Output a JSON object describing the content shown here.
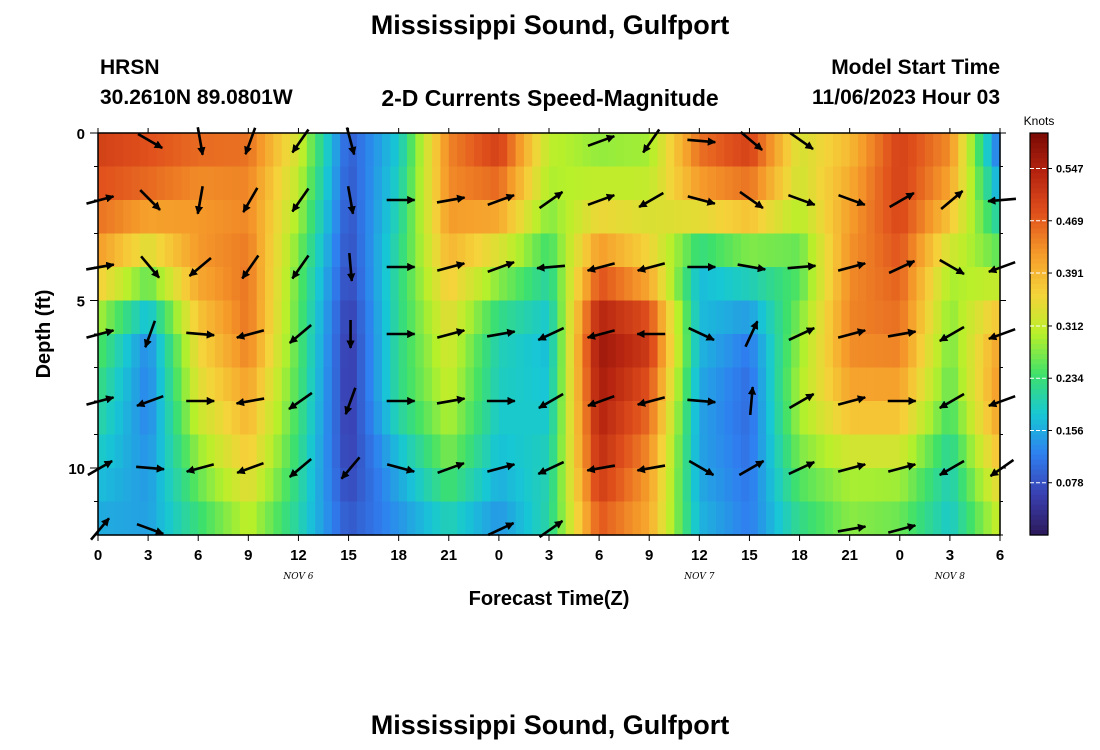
{
  "header": {
    "title": "Mississippi Sound, Gulfport",
    "station": "HRSN",
    "coords": "30.2610N  89.0801W",
    "subtitle": "2-D Currents Speed-Magnitude",
    "model_label": "Model Start Time",
    "model_time": "11/06/2023 Hour 03"
  },
  "footer": {
    "title": "Mississippi Sound, Gulfport"
  },
  "chart_data": {
    "type": "heatmap",
    "title": "2-D Currents Speed-Magnitude",
    "xlabel": "Forecast Time(Z)",
    "ylabel": "Depth (ft)",
    "colorbar_label": "Knots",
    "x_tick_labels": [
      "0",
      "3",
      "6",
      "9",
      "12",
      "15",
      "18",
      "21",
      "0",
      "3",
      "6",
      "9",
      "12",
      "15",
      "18",
      "21",
      "0",
      "3",
      "6"
    ],
    "y_tick_labels": [
      "0",
      "5",
      "10"
    ],
    "ylim": [
      0,
      12
    ],
    "y_inverted": true,
    "date_labels": [
      {
        "text": "NOV 6",
        "at_hour": 12
      },
      {
        "text": "NOV 7",
        "at_hour": 36
      },
      {
        "text": "NOV 8",
        "at_hour": 51
      }
    ],
    "colorbar_ticks": [
      "0.078",
      "0.156",
      "0.234",
      "0.312",
      "0.391",
      "0.469",
      "0.547"
    ],
    "colorbar_range": [
      0.0,
      0.6
    ],
    "colors": [
      "#2b1a5a",
      "#3a3fb0",
      "#2f7ff0",
      "#17c7d4",
      "#3fe16a",
      "#b8f02a",
      "#f5d33a",
      "#f59a2a",
      "#e0501c",
      "#b62410",
      "#7a0a04"
    ],
    "depths_ft": [
      0,
      2,
      4,
      6,
      8,
      10,
      12
    ],
    "hours": [
      0,
      3,
      6,
      9,
      12,
      15,
      18,
      21,
      24,
      27,
      30,
      33,
      36,
      39,
      42,
      45,
      48,
      51,
      54
    ],
    "speed_knots": [
      [
        0.51,
        0.49,
        0.47,
        0.46,
        0.33,
        0.09,
        0.18,
        0.44,
        0.52,
        0.31,
        0.27,
        0.28,
        0.47,
        0.52,
        0.33,
        0.38,
        0.5,
        0.44,
        0.08
      ],
      [
        0.47,
        0.45,
        0.42,
        0.43,
        0.3,
        0.08,
        0.2,
        0.43,
        0.44,
        0.29,
        0.32,
        0.32,
        0.4,
        0.43,
        0.32,
        0.41,
        0.5,
        0.4,
        0.17
      ],
      [
        0.4,
        0.3,
        0.42,
        0.45,
        0.26,
        0.07,
        0.22,
        0.38,
        0.3,
        0.22,
        0.45,
        0.37,
        0.17,
        0.22,
        0.24,
        0.43,
        0.47,
        0.3,
        0.28
      ],
      [
        0.26,
        0.13,
        0.36,
        0.45,
        0.25,
        0.05,
        0.22,
        0.33,
        0.2,
        0.17,
        0.57,
        0.52,
        0.17,
        0.12,
        0.28,
        0.44,
        0.45,
        0.27,
        0.41
      ],
      [
        0.22,
        0.12,
        0.33,
        0.4,
        0.24,
        0.05,
        0.22,
        0.31,
        0.19,
        0.18,
        0.55,
        0.47,
        0.15,
        0.1,
        0.3,
        0.4,
        0.4,
        0.25,
        0.43
      ],
      [
        0.18,
        0.14,
        0.27,
        0.36,
        0.22,
        0.06,
        0.16,
        0.26,
        0.17,
        0.2,
        0.52,
        0.42,
        0.15,
        0.11,
        0.26,
        0.3,
        0.3,
        0.2,
        0.37
      ],
      [
        0.15,
        0.15,
        0.22,
        0.29,
        0.2,
        0.09,
        0.13,
        0.18,
        0.13,
        0.21,
        0.46,
        0.4,
        0.17,
        0.12,
        0.21,
        0.27,
        0.25,
        0.18,
        0.3
      ]
    ],
    "vectors": [
      {
        "hour": 0,
        "depth": 2,
        "dir": 75
      },
      {
        "hour": 3,
        "depth": 0,
        "dir": 120
      },
      {
        "hour": 6,
        "depth": 0,
        "dir": 170
      },
      {
        "hour": 9,
        "depth": 0,
        "dir": 200
      },
      {
        "hour": 12,
        "depth": 0,
        "dir": 215
      },
      {
        "hour": 15,
        "depth": 0,
        "dir": 165
      },
      {
        "hour": 21,
        "depth": 2,
        "dir": 80
      },
      {
        "hour": 24,
        "depth": 2,
        "dir": 70
      },
      {
        "hour": 27,
        "depth": 2,
        "dir": 55
      },
      {
        "hour": 30,
        "depth": 0,
        "dir": 70
      },
      {
        "hour": 33,
        "depth": 0,
        "dir": 215
      },
      {
        "hour": 36,
        "depth": 0,
        "dir": 95
      },
      {
        "hour": 39,
        "depth": 0,
        "dir": 130
      },
      {
        "hour": 42,
        "depth": 0,
        "dir": 125
      },
      {
        "hour": 3,
        "depth": 2,
        "dir": 135
      },
      {
        "hour": 6,
        "depth": 2,
        "dir": 190
      },
      {
        "hour": 9,
        "depth": 2,
        "dir": 210
      },
      {
        "hour": 12,
        "depth": 2,
        "dir": 215
      },
      {
        "hour": 15,
        "depth": 2,
        "dir": 170
      },
      {
        "hour": 18,
        "depth": 2,
        "dir": 90
      },
      {
        "hour": 30,
        "depth": 2,
        "dir": 70
      },
      {
        "hour": 33,
        "depth": 2,
        "dir": 240
      },
      {
        "hour": 36,
        "depth": 2,
        "dir": 105
      },
      {
        "hour": 39,
        "depth": 2,
        "dir": 125
      },
      {
        "hour": 42,
        "depth": 2,
        "dir": 110
      },
      {
        "hour": 45,
        "depth": 2,
        "dir": 110
      },
      {
        "hour": 48,
        "depth": 2,
        "dir": 60
      },
      {
        "hour": 51,
        "depth": 2,
        "dir": 50
      },
      {
        "hour": 54,
        "depth": 2,
        "dir": 265
      },
      {
        "hour": 0,
        "depth": 4,
        "dir": 80
      },
      {
        "hour": 3,
        "depth": 4,
        "dir": 140
      },
      {
        "hour": 6,
        "depth": 4,
        "dir": 230
      },
      {
        "hour": 9,
        "depth": 4,
        "dir": 215
      },
      {
        "hour": 12,
        "depth": 4,
        "dir": 215
      },
      {
        "hour": 15,
        "depth": 4,
        "dir": 175
      },
      {
        "hour": 18,
        "depth": 4,
        "dir": 90
      },
      {
        "hour": 21,
        "depth": 4,
        "dir": 75
      },
      {
        "hour": 24,
        "depth": 4,
        "dir": 70
      },
      {
        "hour": 27,
        "depth": 4,
        "dir": 265
      },
      {
        "hour": 30,
        "depth": 4,
        "dir": 255
      },
      {
        "hour": 33,
        "depth": 4,
        "dir": 255
      },
      {
        "hour": 36,
        "depth": 4,
        "dir": 90
      },
      {
        "hour": 39,
        "depth": 4,
        "dir": 100
      },
      {
        "hour": 42,
        "depth": 4,
        "dir": 85
      },
      {
        "hour": 45,
        "depth": 4,
        "dir": 75
      },
      {
        "hour": 48,
        "depth": 4,
        "dir": 65
      },
      {
        "hour": 51,
        "depth": 4,
        "dir": 120
      },
      {
        "hour": 54,
        "depth": 4,
        "dir": 250
      },
      {
        "hour": 0,
        "depth": 6,
        "dir": 75
      },
      {
        "hour": 3,
        "depth": 6,
        "dir": 200
      },
      {
        "hour": 6,
        "depth": 6,
        "dir": 95
      },
      {
        "hour": 9,
        "depth": 6,
        "dir": 255
      },
      {
        "hour": 12,
        "depth": 6,
        "dir": 230
      },
      {
        "hour": 15,
        "depth": 6,
        "dir": 180
      },
      {
        "hour": 18,
        "depth": 6,
        "dir": 90
      },
      {
        "hour": 21,
        "depth": 6,
        "dir": 75
      },
      {
        "hour": 24,
        "depth": 6,
        "dir": 80
      },
      {
        "hour": 27,
        "depth": 6,
        "dir": 245
      },
      {
        "hour": 30,
        "depth": 6,
        "dir": 255
      },
      {
        "hour": 33,
        "depth": 6,
        "dir": 270
      },
      {
        "hour": 36,
        "depth": 6,
        "dir": 115
      },
      {
        "hour": 39,
        "depth": 6,
        "dir": 25
      },
      {
        "hour": 42,
        "depth": 6,
        "dir": 65
      },
      {
        "hour": 45,
        "depth": 6,
        "dir": 75
      },
      {
        "hour": 48,
        "depth": 6,
        "dir": 80
      },
      {
        "hour": 51,
        "depth": 6,
        "dir": 240
      },
      {
        "hour": 54,
        "depth": 6,
        "dir": 250
      },
      {
        "hour": 0,
        "depth": 8,
        "dir": 75
      },
      {
        "hour": 3,
        "depth": 8,
        "dir": 250
      },
      {
        "hour": 6,
        "depth": 8,
        "dir": 90
      },
      {
        "hour": 9,
        "depth": 8,
        "dir": 260
      },
      {
        "hour": 12,
        "depth": 8,
        "dir": 235
      },
      {
        "hour": 15,
        "depth": 8,
        "dir": 200
      },
      {
        "hour": 18,
        "depth": 8,
        "dir": 90
      },
      {
        "hour": 21,
        "depth": 8,
        "dir": 80
      },
      {
        "hour": 24,
        "depth": 8,
        "dir": 90
      },
      {
        "hour": 27,
        "depth": 8,
        "dir": 240
      },
      {
        "hour": 30,
        "depth": 8,
        "dir": 250
      },
      {
        "hour": 33,
        "depth": 8,
        "dir": 255
      },
      {
        "hour": 36,
        "depth": 8,
        "dir": 95
      },
      {
        "hour": 39,
        "depth": 8,
        "dir": 5
      },
      {
        "hour": 42,
        "depth": 8,
        "dir": 60
      },
      {
        "hour": 45,
        "depth": 8,
        "dir": 75
      },
      {
        "hour": 48,
        "depth": 8,
        "dir": 90
      },
      {
        "hour": 51,
        "depth": 8,
        "dir": 240
      },
      {
        "hour": 54,
        "depth": 8,
        "dir": 250
      },
      {
        "hour": 0,
        "depth": 10,
        "dir": 60
      },
      {
        "hour": 3,
        "depth": 10,
        "dir": 95
      },
      {
        "hour": 6,
        "depth": 10,
        "dir": 255
      },
      {
        "hour": 9,
        "depth": 10,
        "dir": 250
      },
      {
        "hour": 12,
        "depth": 10,
        "dir": 230
      },
      {
        "hour": 15,
        "depth": 10,
        "dir": 220
      },
      {
        "hour": 18,
        "depth": 10,
        "dir": 105
      },
      {
        "hour": 21,
        "depth": 10,
        "dir": 70
      },
      {
        "hour": 24,
        "depth": 10,
        "dir": 75
      },
      {
        "hour": 27,
        "depth": 10,
        "dir": 245
      },
      {
        "hour": 30,
        "depth": 10,
        "dir": 260
      },
      {
        "hour": 33,
        "depth": 10,
        "dir": 260
      },
      {
        "hour": 36,
        "depth": 10,
        "dir": 120
      },
      {
        "hour": 39,
        "depth": 10,
        "dir": 60
      },
      {
        "hour": 42,
        "depth": 10,
        "dir": 65
      },
      {
        "hour": 45,
        "depth": 10,
        "dir": 75
      },
      {
        "hour": 48,
        "depth": 10,
        "dir": 75
      },
      {
        "hour": 51,
        "depth": 10,
        "dir": 240
      },
      {
        "hour": 54,
        "depth": 10,
        "dir": 235
      },
      {
        "hour": 0,
        "depth": 12,
        "dir": 40
      },
      {
        "hour": 3,
        "depth": 12,
        "dir": 110
      },
      {
        "hour": 24,
        "depth": 12,
        "dir": 65
      },
      {
        "hour": 27,
        "depth": 12,
        "dir": 55
      },
      {
        "hour": 45,
        "depth": 12,
        "dir": 80
      },
      {
        "hour": 48,
        "depth": 12,
        "dir": 75
      }
    ]
  }
}
